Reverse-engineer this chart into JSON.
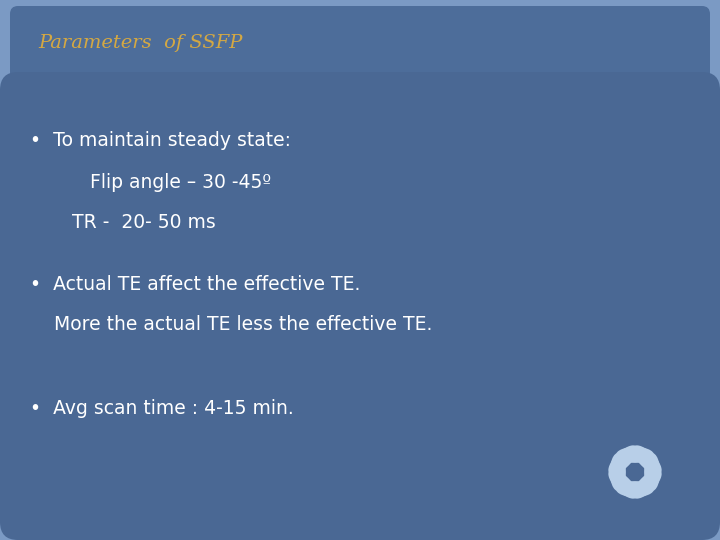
{
  "bg_color": "#7b9ac4",
  "title_box_color": "#4d6d9a",
  "title_text": "Parameters  of SSFP",
  "title_color": "#d4a843",
  "content_box_color": "#4a6894",
  "bullet_color": "#ffffff",
  "bullet1_line1": "•  To maintain steady state:",
  "bullet1_line2": "          Flip angle – 30 -45º",
  "bullet1_line3": "       TR -  20- 50 ms",
  "bullet2_line1": "•  Actual TE affect the effective TE.",
  "bullet2_line2": "    More the actual TE less the effective TE.",
  "bullet3_line1": "•  Avg scan time : 4-15 min.",
  "snowflake_color": "#b8cfe8",
  "font_size_title": 14,
  "font_size_content": 13.5
}
